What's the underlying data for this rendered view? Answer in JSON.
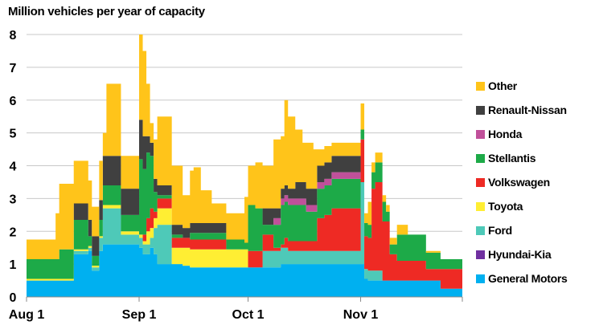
{
  "chart_data": {
    "type": "area",
    "subtype": "stacked-step",
    "title": "Million  vehicles per year of capacity",
    "xlabel": "",
    "ylabel": "Million  vehicles per year of capacity",
    "ylim": [
      0,
      8
    ],
    "yticks": [
      "0",
      "1",
      "2",
      "3",
      "4",
      "5",
      "6",
      "7",
      "8"
    ],
    "xlim": [
      0,
      120
    ],
    "xticks": [
      {
        "label": "Aug 1",
        "day": 0
      },
      {
        "label": "Sep 1",
        "day": 31
      },
      {
        "label": "Oct 1",
        "day": 61
      },
      {
        "label": "Nov 1",
        "day": 92
      }
    ],
    "x": [
      0,
      8,
      9,
      13,
      17,
      18,
      20,
      21,
      22,
      26,
      31,
      32,
      33,
      34,
      35,
      36,
      37,
      40,
      43,
      45,
      46,
      48,
      50,
      51,
      55,
      60,
      61,
      63,
      65,
      68,
      70,
      71,
      72,
      74,
      75,
      76,
      77,
      79,
      80,
      82,
      84,
      86,
      88,
      89,
      91,
      92,
      93,
      94,
      95,
      96,
      98,
      99,
      100,
      102,
      105,
      110,
      114
    ],
    "x_end": 120,
    "series": [
      {
        "name": "General Motors",
        "color": "#00b0f0",
        "values": [
          0.5,
          0.5,
          0.5,
          1.3,
          1.4,
          0.8,
          1.4,
          1.6,
          1.6,
          1.6,
          1.5,
          1.3,
          1.3,
          1.5,
          1.3,
          1.0,
          1.0,
          1.0,
          0.95,
          0.9,
          0.9,
          0.9,
          0.9,
          0.9,
          0.9,
          0.9,
          0.9,
          0.9,
          0.9,
          0.9,
          1.0,
          1.0,
          1.0,
          1.0,
          1.0,
          1.0,
          1.0,
          1.0,
          1.0,
          1.0,
          1.0,
          1.0,
          1.0,
          1.0,
          1.0,
          1.0,
          0.55,
          0.5,
          0.5,
          0.5,
          0.5,
          0.5,
          0.5,
          0.5,
          0.5,
          0.5,
          0.25
        ]
      },
      {
        "name": "Hyundai-Kia",
        "color": "#7030a0",
        "values": [
          0,
          0,
          0,
          0,
          0,
          0,
          0,
          0,
          0,
          0,
          0,
          0,
          0,
          0,
          0,
          0,
          0,
          0,
          0,
          0,
          0,
          0,
          0,
          0,
          0,
          0,
          0,
          0,
          0,
          0,
          0,
          0,
          0,
          0,
          0,
          0,
          0,
          0,
          0,
          0,
          0,
          0,
          0,
          0,
          0,
          0,
          0,
          0,
          0,
          0,
          0,
          0,
          0,
          0,
          0,
          0,
          0
        ]
      },
      {
        "name": "Ford",
        "color": "#4ec9b8",
        "values": [
          0,
          0,
          0,
          0.1,
          0.1,
          0.1,
          0.4,
          1.1,
          1.1,
          0.3,
          0.3,
          0.3,
          0.3,
          0.3,
          0.8,
          1.2,
          1.2,
          0,
          0,
          0,
          0,
          0,
          0,
          0,
          0,
          0,
          0,
          0,
          0.5,
          0.5,
          0.5,
          0.5,
          0.4,
          0.4,
          0.4,
          0.4,
          0.4,
          0.4,
          0.4,
          0.4,
          0.4,
          0.4,
          0.4,
          0.4,
          0.4,
          2.5,
          0.3,
          0.3,
          0.3,
          0.3,
          0,
          0,
          0,
          0,
          0,
          0,
          0
        ]
      },
      {
        "name": "Toyota",
        "color": "#ffee33",
        "values": [
          0.05,
          0.05,
          0.05,
          0.05,
          0.05,
          0.05,
          0.05,
          0.1,
          0.1,
          0.1,
          0.1,
          0.1,
          0.4,
          0.3,
          0.3,
          0.5,
          0.5,
          0.5,
          0.55,
          0.55,
          0.55,
          0.55,
          0.55,
          0.55,
          0.55,
          0.55,
          0,
          0,
          0,
          0,
          0,
          0,
          0,
          0,
          0,
          0,
          0,
          0,
          0,
          0,
          0,
          0,
          0,
          0,
          0,
          0,
          0,
          0,
          0,
          0,
          0,
          0,
          0,
          0,
          0,
          0,
          0
        ]
      },
      {
        "name": "Volkswagen",
        "color": "#ee2a24",
        "values": [
          0,
          0,
          0,
          0,
          0,
          0,
          0,
          0,
          0,
          0,
          0,
          0.2,
          0.4,
          0.6,
          0.2,
          0.3,
          0.3,
          0.3,
          0.3,
          0.3,
          0.3,
          0.3,
          0.3,
          0.3,
          0.0,
          0,
          0.5,
          0.5,
          0.5,
          0.1,
          0.1,
          0.3,
          0.3,
          0.3,
          0.3,
          0.3,
          0.3,
          0.3,
          1.0,
          1.1,
          1.3,
          1.3,
          1.3,
          1.3,
          1.3,
          1.3,
          1.0,
          1.0,
          2.5,
          2.7,
          1.8,
          1.8,
          0.8,
          0.6,
          0.6,
          0.35,
          0.6
        ]
      },
      {
        "name": "Stellantis",
        "color": "#1daa48",
        "values": [
          0.6,
          0.6,
          0.9,
          0.9,
          0.3,
          0.3,
          0.5,
          0.6,
          0.6,
          0.5,
          2.3,
          2.0,
          2.0,
          1.6,
          0.6,
          0.1,
          0.1,
          0.1,
          0.0,
          0.2,
          0.2,
          0.2,
          0.2,
          0.2,
          0.3,
          0.2,
          1.4,
          1.3,
          0.3,
          0.7,
          1.2,
          1.1,
          1.1,
          1.1,
          1.1,
          1.1,
          0.9,
          0.9,
          0.9,
          0.9,
          0.9,
          0.9,
          0.9,
          0.9,
          0.9,
          0.3,
          0.4,
          0.4,
          0.5,
          0.6,
          0.6,
          0.3,
          0.3,
          0.8,
          0.8,
          0.5,
          0.3
        ]
      },
      {
        "name": "Honda",
        "color": "#c0509a",
        "values": [
          0,
          0,
          0,
          0,
          0,
          0,
          0,
          0,
          0,
          0,
          0,
          0,
          0,
          0,
          0,
          0,
          0,
          0,
          0,
          0,
          0,
          0,
          0,
          0,
          0,
          0,
          0,
          0,
          0,
          0.2,
          0.2,
          0.2,
          0.2,
          0.2,
          0.2,
          0.2,
          0.2,
          0.2,
          0.2,
          0.2,
          0.2,
          0.2,
          0.2,
          0.2,
          0.2,
          0,
          0,
          0,
          0,
          0,
          0,
          0,
          0,
          0,
          0,
          0,
          0
        ]
      },
      {
        "name": "Renault-Nissan",
        "color": "#404040",
        "values": [
          0,
          0,
          0,
          0.5,
          0.5,
          0.6,
          0.6,
          0.9,
          0.9,
          0.8,
          1.2,
          1.0,
          0.5,
          0.4,
          0.4,
          0.3,
          0.3,
          0.3,
          0.3,
          0.3,
          0.3,
          0.3,
          0.3,
          0.3,
          0,
          0,
          0,
          0,
          0.5,
          0.3,
          0.3,
          0.3,
          0.3,
          0.5,
          0.5,
          0.5,
          0.5,
          0.5,
          0.5,
          0.5,
          0.5,
          0.5,
          0.5,
          0.5,
          0.5,
          0,
          0,
          0,
          0,
          0,
          0,
          0,
          0,
          0,
          0,
          0,
          0
        ]
      },
      {
        "name": "Other",
        "color": "#ffc41a",
        "values": [
          0.6,
          1.4,
          2.0,
          1.3,
          1.2,
          0.9,
          1.2,
          0.7,
          2.2,
          1.0,
          2.6,
          2.6,
          1.6,
          0.6,
          1.2,
          2.1,
          2.1,
          1.8,
          1.0,
          1.6,
          1.7,
          1.0,
          1.0,
          0.6,
          0.8,
          1.4,
          1.2,
          1.4,
          1.3,
          2.1,
          1.6,
          2.6,
          2.2,
          1.6,
          1.6,
          1.2,
          1.4,
          1.2,
          0.5,
          0.5,
          0.4,
          0.4,
          0.4,
          0.4,
          0.4,
          0.8,
          0.3,
          0.7,
          0.3,
          0.3,
          0.2,
          0.2,
          0.2,
          0.3,
          0,
          0.05,
          0
        ]
      }
    ]
  },
  "legend": [
    {
      "label": "Other",
      "color": "#ffc41a"
    },
    {
      "label": "Renault-Nissan",
      "color": "#404040"
    },
    {
      "label": "Honda",
      "color": "#c0509a"
    },
    {
      "label": "Stellantis",
      "color": "#1daa48"
    },
    {
      "label": "Volkswagen",
      "color": "#ee2a24"
    },
    {
      "label": "Toyota",
      "color": "#ffee33"
    },
    {
      "label": "Ford",
      "color": "#4ec9b8"
    },
    {
      "label": "Hyundai-Kia",
      "color": "#7030a0"
    },
    {
      "label": "General Motors",
      "color": "#00b0f0"
    }
  ]
}
